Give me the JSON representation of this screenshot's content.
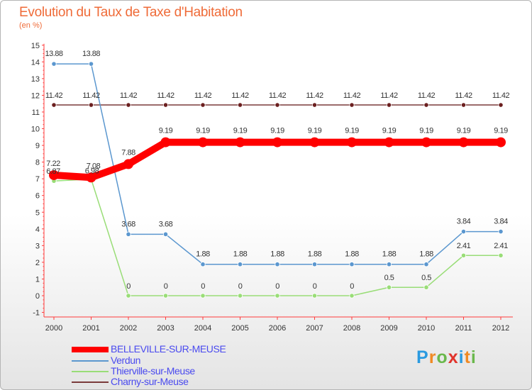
{
  "header": {
    "title": "Evolution du Taux de Taxe d'Habitation",
    "subtitle": "(en %)"
  },
  "logo": {
    "letters": [
      "P",
      "r",
      "o",
      "x",
      "i",
      "t",
      "i"
    ],
    "colors": [
      "#2a9ae0",
      "#f08a24",
      "#6ab84c",
      "#e0342c",
      "#2a9ae0",
      "#f08a24",
      "#6ab84c"
    ]
  },
  "chart_data": {
    "type": "line",
    "title": "Evolution du Taux de Taxe d'Habitation",
    "subtitle": "(en %)",
    "x": [
      "2000",
      "2001",
      "2002",
      "2003",
      "2004",
      "2005",
      "2006",
      "2007",
      "2008",
      "2009",
      "2010",
      "2011",
      "2012"
    ],
    "ylim": [
      -1,
      15
    ],
    "yticks": [
      "-1",
      "0",
      "1",
      "2",
      "3",
      "4",
      "5",
      "6",
      "7",
      "8",
      "9",
      "10",
      "11",
      "12",
      "13",
      "14",
      "15"
    ],
    "grid": false,
    "legend_position": "bottom-left",
    "series": [
      {
        "name": "BELLEVILLE-SUR-MEUSE",
        "color": "#ff0000",
        "values": [
          7.22,
          7.08,
          7.88,
          9.19,
          9.19,
          9.19,
          9.19,
          9.19,
          9.19,
          9.19,
          9.19,
          9.19,
          9.19
        ],
        "labels": [
          "7.22",
          "7.08",
          "7.88",
          "9.19",
          "9.19",
          "9.19",
          "9.19",
          "9.19",
          "9.19",
          "9.19",
          "9.19",
          "9.19",
          "9.19"
        ]
      },
      {
        "name": "Verdun",
        "color": "#5b97cf",
        "values": [
          13.88,
          13.88,
          3.68,
          3.68,
          1.88,
          1.88,
          1.88,
          1.88,
          1.88,
          1.88,
          1.88,
          3.84,
          3.84
        ],
        "labels": [
          "13.88",
          "13.88",
          "3.68",
          "3.68",
          "1.88",
          "1.88",
          "1.88",
          "1.88",
          "1.88",
          "1.88",
          "1.88",
          "3.84",
          "3.84"
        ]
      },
      {
        "name": "Thierville-sur-Meuse",
        "color": "#99dd77",
        "values": [
          6.87,
          6.98,
          0,
          0,
          0,
          0,
          0,
          0,
          0,
          0.5,
          0.5,
          2.41,
          2.41
        ],
        "labels": [
          "6.87",
          "6.98",
          "0",
          "0",
          "0",
          "0",
          "0",
          "0",
          "0",
          "0.5",
          "0.5",
          "2.41",
          "2.41"
        ]
      },
      {
        "name": "Charny-sur-Meuse",
        "color": "#7a3a3a",
        "values": [
          11.42,
          11.42,
          11.42,
          11.42,
          11.42,
          11.42,
          11.42,
          11.42,
          11.42,
          11.42,
          11.42,
          11.42,
          11.42
        ],
        "labels": [
          "11.42",
          "11.42",
          "11.42",
          "11.42",
          "11.42",
          "11.42",
          "11.42",
          "11.42",
          "11.42",
          "11.42",
          "11.42",
          "11.42",
          "11.42"
        ]
      }
    ]
  }
}
